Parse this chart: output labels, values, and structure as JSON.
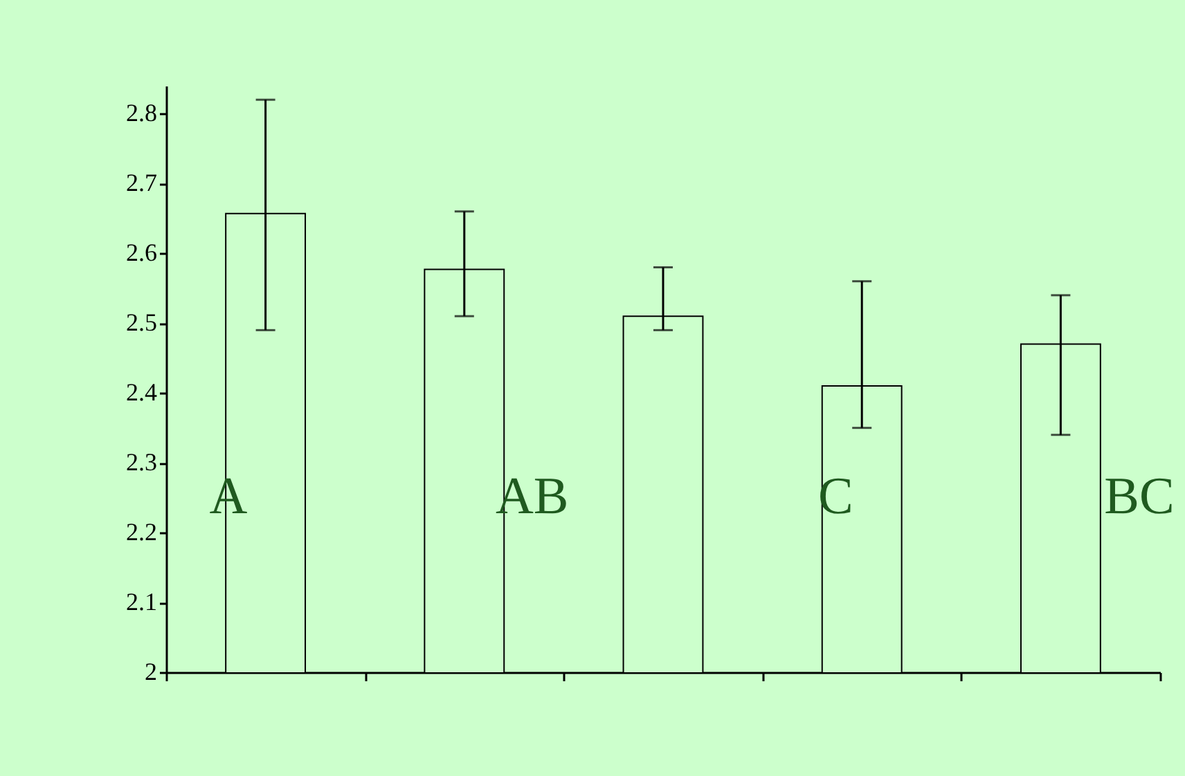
{
  "chart_data": {
    "type": "bar",
    "categories": [
      null,
      null,
      null,
      null,
      null
    ],
    "values": [
      2.657,
      2.577,
      2.51,
      2.41,
      2.47
    ],
    "color": "#ccffcc",
    "errors": [
      [
        2.49,
        2.82
      ],
      [
        2.51,
        2.66
      ],
      [
        2.49,
        2.58
      ],
      [
        2.35,
        2.56
      ],
      [
        2.34,
        2.54
      ]
    ],
    "ylim": [
      2,
      2.84
    ],
    "yticks": [
      2,
      2.1,
      2.2,
      2.3,
      2.4,
      2.5,
      2.6,
      2.7,
      2.8
    ],
    "annotations": [
      "A",
      "AB",
      "C",
      "BC"
    ],
    "tick_labels": "y",
    "grid": false
  }
}
